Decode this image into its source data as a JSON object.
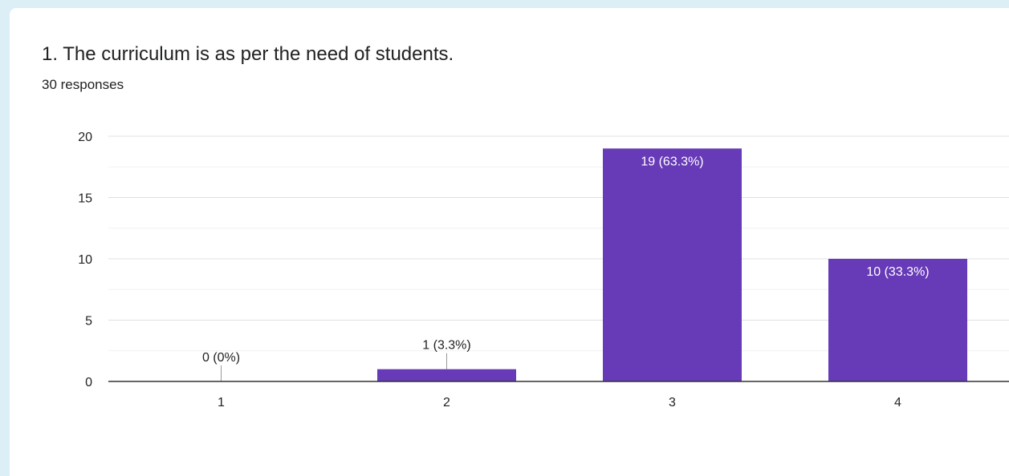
{
  "question": {
    "title": "1. The curriculum is as per the need of students.",
    "responses": "30 responses"
  },
  "colors": {
    "bar": "#673ab7",
    "grid_major": "#e0e0e0",
    "grid_minor": "#f1f1f1",
    "axis": "#333333",
    "text": "#222222",
    "page_background": "#dceef6"
  },
  "chart_data": {
    "type": "bar",
    "categories": [
      "1",
      "2",
      "3",
      "4"
    ],
    "values": [
      0,
      1,
      19,
      10
    ],
    "data_labels": [
      "0 (0%)",
      "1 (3.3%)",
      "19 (63.3%)",
      "10 (33.3%)"
    ],
    "yticks": [
      "0",
      "5",
      "10",
      "15",
      "20"
    ],
    "ylim": [
      0,
      20
    ],
    "title": "",
    "xlabel": "",
    "ylabel": "",
    "grid": true,
    "legend": "none"
  }
}
